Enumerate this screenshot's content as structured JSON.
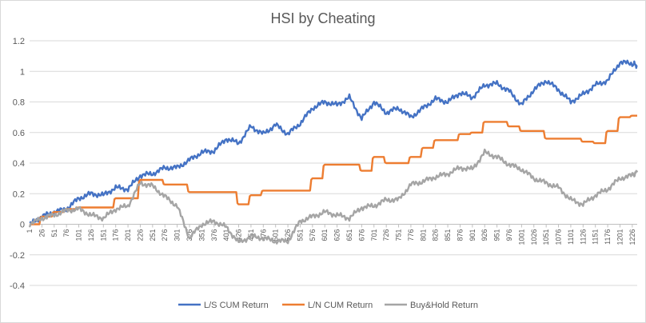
{
  "chart_data": {
    "type": "line",
    "title": "HSI by Cheating",
    "xlabel": "",
    "ylabel": "",
    "ylim": [
      -0.4,
      1.2
    ],
    "yticks": [
      "1.2",
      "1",
      "0.8",
      "0.6",
      "0.4",
      "0.2",
      "0",
      "-0.2",
      "-0.4"
    ],
    "xticks": [
      "1",
      "26",
      "51",
      "76",
      "101",
      "126",
      "151",
      "176",
      "201",
      "226",
      "251",
      "276",
      "301",
      "326",
      "351",
      "376",
      "401",
      "426",
      "451",
      "476",
      "501",
      "526",
      "551",
      "576",
      "601",
      "626",
      "651",
      "676",
      "701",
      "726",
      "751",
      "776",
      "801",
      "826",
      "851",
      "876",
      "901",
      "926",
      "951",
      "976",
      "1001",
      "1026",
      "1051",
      "1076",
      "1101",
      "1126",
      "1151",
      "1176",
      "1201",
      "1226"
    ],
    "x": [
      1,
      26,
      51,
      76,
      101,
      126,
      151,
      176,
      201,
      226,
      251,
      276,
      301,
      326,
      351,
      376,
      401,
      426,
      451,
      476,
      501,
      526,
      551,
      576,
      601,
      626,
      651,
      676,
      701,
      726,
      751,
      776,
      801,
      826,
      851,
      876,
      901,
      926,
      951,
      976,
      1001,
      1026,
      1051,
      1076,
      1101,
      1126,
      1151,
      1176,
      1201,
      1226,
      1236
    ],
    "grid": true,
    "legend_position": "bottom",
    "series": [
      {
        "name": "L/S CUM Return",
        "color": "#4472C4",
        "values": [
          0.0,
          0.05,
          0.08,
          0.1,
          0.17,
          0.2,
          0.19,
          0.24,
          0.23,
          0.32,
          0.33,
          0.37,
          0.37,
          0.42,
          0.47,
          0.48,
          0.56,
          0.53,
          0.64,
          0.59,
          0.65,
          0.59,
          0.66,
          0.76,
          0.8,
          0.78,
          0.83,
          0.69,
          0.8,
          0.73,
          0.76,
          0.7,
          0.76,
          0.82,
          0.8,
          0.86,
          0.83,
          0.91,
          0.92,
          0.87,
          0.78,
          0.88,
          0.94,
          0.88,
          0.8,
          0.85,
          0.91,
          0.94,
          1.06,
          1.05,
          1.04
        ]
      },
      {
        "name": "L/N CUM Return",
        "color": "#ED7D31",
        "values": [
          0.0,
          0.05,
          0.08,
          0.1,
          0.11,
          0.11,
          0.11,
          0.17,
          0.17,
          0.29,
          0.29,
          0.26,
          0.26,
          0.21,
          0.21,
          0.21,
          0.21,
          0.13,
          0.19,
          0.22,
          0.22,
          0.22,
          0.22,
          0.3,
          0.39,
          0.39,
          0.39,
          0.35,
          0.44,
          0.4,
          0.4,
          0.44,
          0.5,
          0.55,
          0.55,
          0.59,
          0.6,
          0.67,
          0.67,
          0.64,
          0.61,
          0.61,
          0.56,
          0.56,
          0.56,
          0.54,
          0.53,
          0.61,
          0.7,
          0.71,
          0.71
        ]
      },
      {
        "name": "Buy&Hold Return",
        "color": "#A5A5A5",
        "values": [
          0.0,
          0.04,
          0.06,
          0.09,
          0.1,
          0.06,
          0.04,
          0.1,
          0.12,
          0.27,
          0.25,
          0.18,
          0.12,
          -0.09,
          0.0,
          0.02,
          -0.02,
          -0.12,
          -0.08,
          -0.09,
          -0.11,
          -0.11,
          0.02,
          0.05,
          0.08,
          0.06,
          0.04,
          0.11,
          0.12,
          0.16,
          0.16,
          0.26,
          0.28,
          0.31,
          0.33,
          0.37,
          0.36,
          0.47,
          0.44,
          0.39,
          0.36,
          0.3,
          0.27,
          0.24,
          0.16,
          0.13,
          0.19,
          0.23,
          0.3,
          0.32,
          0.34
        ]
      }
    ]
  }
}
